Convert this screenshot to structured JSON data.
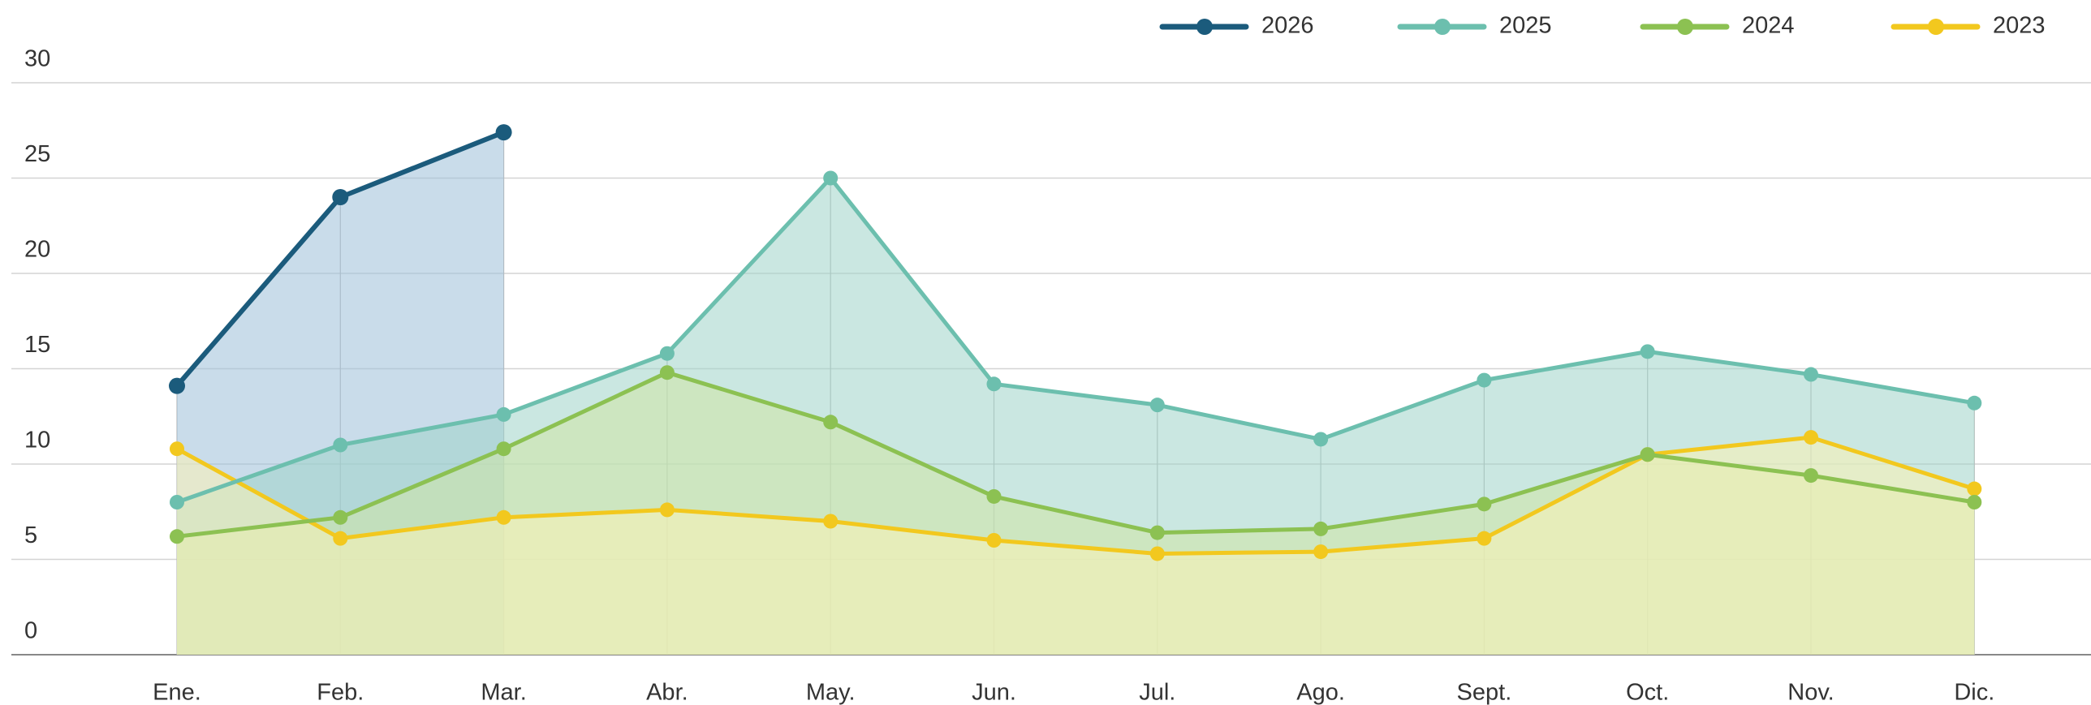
{
  "chart_data": {
    "type": "area",
    "categories": [
      "Ene.",
      "Feb.",
      "Mar.",
      "Abr.",
      "May.",
      "Jun.",
      "Jul.",
      "Ago.",
      "Sept.",
      "Oct.",
      "Nov.",
      "Dic."
    ],
    "series": [
      {
        "name": "2026",
        "color": "#1b5b7c",
        "fill": "#9dbfd9",
        "values": [
          14.1,
          24,
          27.4,
          null,
          null,
          null,
          null,
          null,
          null,
          null,
          null,
          null
        ]
      },
      {
        "name": "2025",
        "color": "#6cbfae",
        "fill": "#9fd3c8",
        "values": [
          8,
          11,
          12.6,
          15.8,
          25,
          14.2,
          13.1,
          11.3,
          14.4,
          15.9,
          14.7,
          13.2
        ]
      },
      {
        "name": "2024",
        "color": "#8cc152",
        "fill": "#cfe6a6",
        "values": [
          6.2,
          7.2,
          10.8,
          14.8,
          12.2,
          8.3,
          6.4,
          6.6,
          7.9,
          10.5,
          9.4,
          8
        ]
      },
      {
        "name": "2023",
        "color": "#f2c81e",
        "fill": "#fbf2b5",
        "values": [
          10.8,
          6.1,
          7.2,
          7.6,
          7,
          6,
          5.3,
          5.4,
          6.1,
          10.5,
          11.4,
          8.7
        ]
      }
    ],
    "ylim": [
      0,
      30
    ],
    "yticks": [
      0,
      5,
      10,
      15,
      20,
      25,
      30
    ],
    "grid": true
  }
}
